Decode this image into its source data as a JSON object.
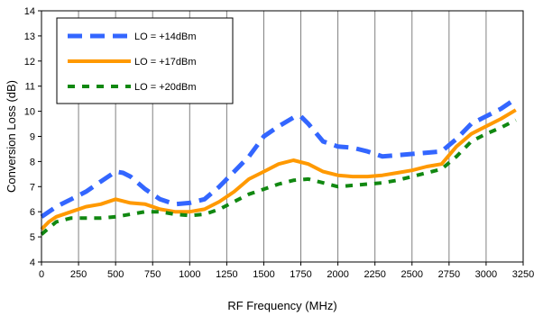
{
  "chart_data": {
    "type": "line",
    "xlabel": "RF Frequency (MHz)",
    "ylabel": "Conversion Loss (dB)",
    "xlim": [
      0,
      3250
    ],
    "ylim": [
      4,
      14
    ],
    "xticks": [
      0,
      250,
      500,
      750,
      1000,
      1250,
      1500,
      1750,
      2000,
      2250,
      2500,
      2750,
      3000,
      3250
    ],
    "yticks": [
      4,
      5,
      6,
      7,
      8,
      9,
      10,
      11,
      12,
      13,
      14
    ],
    "grid": "vertical",
    "legend_position": "top-left",
    "series": [
      {
        "name": "LO = +14dBm",
        "color": "#3366FF",
        "style": "dashed",
        "x": [
          0,
          50,
          100,
          200,
          300,
          400,
          500,
          550,
          600,
          700,
          800,
          900,
          1000,
          1100,
          1200,
          1300,
          1400,
          1500,
          1600,
          1700,
          1750,
          1800,
          1900,
          2000,
          2100,
          2200,
          2300,
          2400,
          2500,
          2600,
          2700,
          2800,
          2900,
          3000,
          3100,
          3200
        ],
        "y": [
          5.8,
          6.0,
          6.2,
          6.5,
          6.8,
          7.2,
          7.6,
          7.55,
          7.4,
          6.9,
          6.5,
          6.3,
          6.35,
          6.5,
          7.0,
          7.6,
          8.2,
          9.0,
          9.4,
          9.75,
          9.8,
          9.5,
          8.8,
          8.6,
          8.55,
          8.4,
          8.2,
          8.25,
          8.3,
          8.35,
          8.4,
          8.9,
          9.5,
          9.8,
          10.1,
          10.5
        ]
      },
      {
        "name": "LO = +17dBm",
        "color": "#FF9900",
        "style": "solid",
        "x": [
          0,
          50,
          100,
          200,
          300,
          400,
          500,
          600,
          700,
          800,
          900,
          1000,
          1100,
          1200,
          1300,
          1400,
          1500,
          1600,
          1700,
          1800,
          1900,
          2000,
          2100,
          2200,
          2300,
          2400,
          2500,
          2600,
          2700,
          2800,
          2900,
          3000,
          3100,
          3200
        ],
        "y": [
          5.3,
          5.6,
          5.8,
          6.0,
          6.2,
          6.3,
          6.5,
          6.35,
          6.3,
          6.1,
          6.0,
          6.0,
          6.1,
          6.4,
          6.8,
          7.3,
          7.6,
          7.9,
          8.05,
          7.9,
          7.6,
          7.45,
          7.4,
          7.4,
          7.45,
          7.55,
          7.65,
          7.8,
          7.9,
          8.6,
          9.1,
          9.4,
          9.7,
          10.05
        ]
      },
      {
        "name": "LO = +20dBm",
        "color": "#118811",
        "style": "dashed",
        "x": [
          0,
          50,
          100,
          200,
          300,
          400,
          500,
          600,
          700,
          800,
          900,
          1000,
          1100,
          1200,
          1300,
          1400,
          1500,
          1600,
          1700,
          1800,
          1900,
          2000,
          2100,
          2200,
          2300,
          2400,
          2500,
          2600,
          2700,
          2800,
          2900,
          3000,
          3100,
          3200
        ],
        "y": [
          5.1,
          5.35,
          5.6,
          5.75,
          5.75,
          5.75,
          5.8,
          5.9,
          6.0,
          6.0,
          5.9,
          5.85,
          5.9,
          6.1,
          6.4,
          6.7,
          6.9,
          7.1,
          7.25,
          7.3,
          7.15,
          7.0,
          7.05,
          7.1,
          7.15,
          7.25,
          7.4,
          7.55,
          7.7,
          8.2,
          8.8,
          9.1,
          9.35,
          9.65
        ]
      }
    ]
  }
}
